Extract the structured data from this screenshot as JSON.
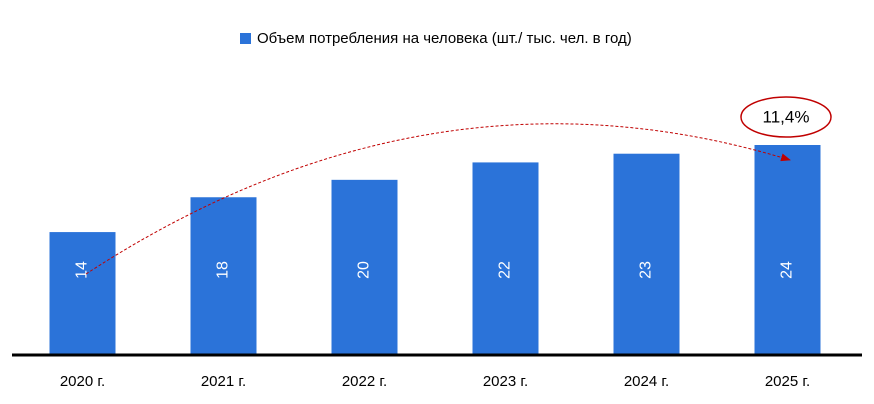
{
  "chart_data": {
    "type": "bar",
    "categories": [
      "2020 г.",
      "2021 г.",
      "2022 г.",
      "2023 г.",
      "2024 г.",
      "2025 г."
    ],
    "series": [
      {
        "name": "Объем потребления на человека (шт./ тыс. чел. в год)",
        "color": "#2b73d9",
        "values": [
          14,
          18,
          20,
          22,
          23,
          24
        ]
      }
    ],
    "annotation": "11,4%"
  }
}
